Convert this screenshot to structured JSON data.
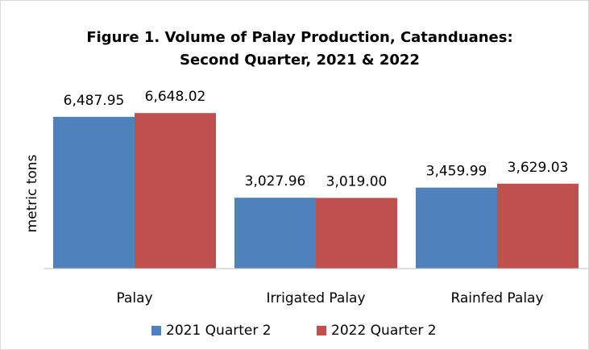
{
  "chart_data": {
    "type": "bar",
    "title": "Figure 1. Volume of Palay Production, Catanduanes:",
    "subtitle": "Second Quarter, 2021 & 2022",
    "y_label": "metric tons",
    "categories": [
      "Palay",
      "Irrigated Palay",
      "Rainfed Palay"
    ],
    "series": [
      {
        "name": "2021 Quarter 2",
        "color": "#4f81bd",
        "values": [
          6487.95,
          3027.96,
          3459.99
        ],
        "value_labels": [
          "6,487.95",
          "3,027.96",
          "3,459.99"
        ]
      },
      {
        "name": "2022 Quarter 2",
        "color": "#c0504d",
        "values": [
          6648.02,
          3019.0,
          3629.03
        ],
        "value_labels": [
          "6,648.02",
          "3,019.00",
          "3,629.03"
        ]
      }
    ],
    "ylim": [
      0,
      8000
    ],
    "grid": false,
    "legend": "bottom"
  }
}
